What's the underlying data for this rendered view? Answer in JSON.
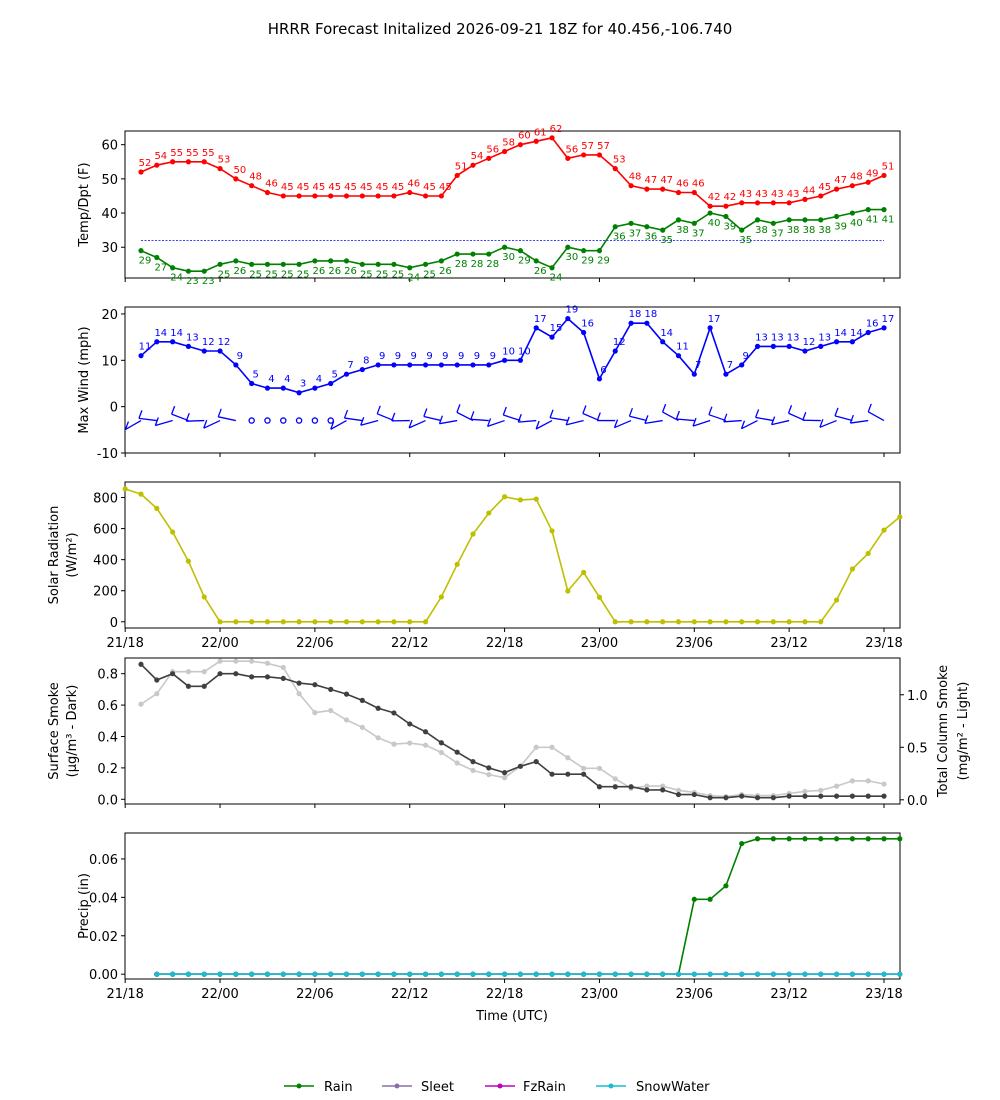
{
  "title": "HRRR Forecast Initalized 2026-09-21 18Z for 40.456,-106.740",
  "colors": {
    "temp": "#ff0000",
    "dewpoint": "#008000",
    "wind": "#0000ff",
    "solar": "#bfbf00",
    "smoke_dark": "#404040",
    "smoke_light": "#c8c8c8",
    "rain": "#008000",
    "sleet": "#8c6fa8",
    "fzrain": "#bf00bf",
    "snowwater": "#17becf",
    "freezing_line": "#0000ff"
  },
  "chart_data": [
    {
      "type": "line",
      "ylabel": "Temp/Dpt (F)",
      "ylim": [
        21,
        64
      ],
      "yticks": [
        30,
        40,
        50,
        60
      ],
      "freezing_line": 32,
      "x_start": 1,
      "series": [
        {
          "key": "temp",
          "values": [
            52,
            54,
            55,
            55,
            55,
            53,
            50,
            48,
            46,
            45,
            45,
            45,
            45,
            45,
            45,
            45,
            45,
            46,
            45,
            45,
            51,
            54,
            56,
            58,
            60,
            61,
            62,
            56,
            57,
            57,
            53,
            48,
            47,
            47,
            46,
            46,
            42,
            42,
            43,
            43,
            43,
            43,
            44,
            45,
            47,
            48,
            49,
            51
          ]
        },
        {
          "key": "dewpoint",
          "values": [
            29,
            27,
            24,
            23,
            23,
            25,
            26,
            25,
            25,
            25,
            25,
            26,
            26,
            26,
            25,
            25,
            25,
            24,
            25,
            26,
            28,
            28,
            28,
            30,
            29,
            26,
            24,
            30,
            29,
            29,
            36,
            37,
            36,
            35,
            38,
            37,
            40,
            39,
            35,
            38,
            37,
            38,
            38,
            38,
            39,
            40,
            41,
            41
          ]
        }
      ]
    },
    {
      "type": "line",
      "ylabel": "Max Wind (mph)",
      "ylim": [
        -10,
        21.5
      ],
      "yticks": [
        -10,
        0,
        10,
        20
      ],
      "x_start": 1,
      "series": [
        {
          "key": "wind",
          "values": [
            11,
            14,
            14,
            13,
            12,
            12,
            9,
            5,
            4,
            4,
            3,
            4,
            5,
            7,
            8,
            9,
            9,
            9,
            9,
            9,
            9,
            9,
            9,
            10,
            10,
            17,
            15,
            19,
            16,
            6,
            12,
            18,
            18,
            14,
            11,
            7,
            17,
            7,
            9,
            13,
            13,
            13,
            12,
            13,
            14,
            14,
            16,
            17
          ]
        }
      ]
    },
    {
      "type": "line",
      "ylabel": "Solar Radiation",
      "ylabel2": "(W/m²)",
      "ylim": [
        -40,
        900
      ],
      "yticks": [
        0,
        200,
        400,
        600,
        800
      ],
      "x_start": 0,
      "series": [
        {
          "key": "solar",
          "values": [
            855,
            822,
            730,
            578,
            390,
            160,
            0,
            0,
            0,
            0,
            0,
            0,
            0,
            0,
            0,
            0,
            0,
            0,
            0,
            0,
            160,
            370,
            565,
            700,
            805,
            785,
            790,
            585,
            198,
            318,
            158,
            0,
            0,
            0,
            0,
            0,
            0,
            0,
            0,
            0,
            0,
            0,
            0,
            0,
            0,
            140,
            340,
            440,
            590,
            675
          ]
        }
      ]
    },
    {
      "type": "line",
      "ylabel": "Surface Smoke",
      "ylabel2": "(μg/m³ - Dark)",
      "ylabel_right": "Total Column Smoke",
      "ylabel_right2": "(mg/m² - Light)",
      "ylim": [
        -0.03,
        0.9
      ],
      "yticks": [
        0.0,
        0.2,
        0.4,
        0.6,
        0.8
      ],
      "ylim_right": [
        -0.04,
        1.35
      ],
      "yticks_right": [
        0.0,
        0.5,
        1.0
      ],
      "x_start": 1,
      "series": [
        {
          "key": "smoke_light",
          "axis": "right",
          "values": [
            0.91,
            1.01,
            1.22,
            1.22,
            1.22,
            1.32,
            1.32,
            1.32,
            1.3,
            1.26,
            1.01,
            0.83,
            0.85,
            0.76,
            0.69,
            0.59,
            0.53,
            0.54,
            0.52,
            0.45,
            0.35,
            0.28,
            0.24,
            0.21,
            0.32,
            0.5,
            0.5,
            0.4,
            0.3,
            0.3,
            0.2,
            0.11,
            0.13,
            0.13,
            0.09,
            0.07,
            0.04,
            0.03,
            0.05,
            0.04,
            0.04,
            0.06,
            0.08,
            0.09,
            0.13,
            0.18,
            0.18,
            0.15
          ]
        },
        {
          "key": "smoke_dark",
          "axis": "left",
          "values": [
            0.86,
            0.76,
            0.8,
            0.72,
            0.72,
            0.8,
            0.8,
            0.78,
            0.78,
            0.77,
            0.74,
            0.73,
            0.7,
            0.67,
            0.63,
            0.58,
            0.55,
            0.48,
            0.43,
            0.36,
            0.3,
            0.24,
            0.2,
            0.17,
            0.21,
            0.24,
            0.16,
            0.16,
            0.16,
            0.08,
            0.08,
            0.08,
            0.06,
            0.06,
            0.03,
            0.03,
            0.01,
            0.01,
            0.02,
            0.01,
            0.01,
            0.02,
            0.02,
            0.02,
            0.02,
            0.02,
            0.02,
            0.02
          ]
        }
      ]
    },
    {
      "type": "line",
      "ylabel": "Precip (in)",
      "xlabel": "Time (UTC)",
      "ylim": [
        -0.0025,
        0.0735
      ],
      "yticks": [
        0.0,
        0.02,
        0.04,
        0.06
      ],
      "x_start": 2,
      "series": [
        {
          "key": "rain",
          "name": "Rain",
          "values": [
            0,
            0,
            0,
            0,
            0,
            0,
            0,
            0,
            0,
            0,
            0,
            0,
            0,
            0,
            0,
            0,
            0,
            0,
            0,
            0,
            0,
            0,
            0,
            0,
            0,
            0,
            0,
            0,
            0,
            0,
            0,
            0,
            0,
            0,
            0.039,
            0.039,
            0.046,
            0.068,
            0.0705,
            0.0705,
            0.0705,
            0.0705,
            0.0705,
            0.0705,
            0.0705,
            0.0705,
            0.0705,
            0.0705
          ]
        },
        {
          "key": "sleet",
          "name": "Sleet",
          "values": [
            0,
            0,
            0,
            0,
            0,
            0,
            0,
            0,
            0,
            0,
            0,
            0,
            0,
            0,
            0,
            0,
            0,
            0,
            0,
            0,
            0,
            0,
            0,
            0,
            0,
            0,
            0,
            0,
            0,
            0,
            0,
            0,
            0,
            0,
            0,
            0,
            0,
            0,
            0,
            0,
            0,
            0,
            0,
            0,
            0,
            0,
            0,
            0
          ]
        },
        {
          "key": "fzrain",
          "name": "FzRain",
          "values": [
            0,
            0,
            0,
            0,
            0,
            0,
            0,
            0,
            0,
            0,
            0,
            0,
            0,
            0,
            0,
            0,
            0,
            0,
            0,
            0,
            0,
            0,
            0,
            0,
            0,
            0,
            0,
            0,
            0,
            0,
            0,
            0,
            0,
            0,
            0,
            0,
            0,
            0,
            0,
            0,
            0,
            0,
            0,
            0,
            0,
            0,
            0,
            0
          ]
        },
        {
          "key": "snowwater",
          "name": "SnowWater",
          "values": [
            0,
            0,
            0,
            0,
            0,
            0,
            0,
            0,
            0,
            0,
            0,
            0,
            0,
            0,
            0,
            0,
            0,
            0,
            0,
            0,
            0,
            0,
            0,
            0,
            0,
            0,
            0,
            0,
            0,
            0,
            0,
            0,
            0,
            0,
            0,
            0,
            0,
            0,
            0,
            0,
            0,
            0,
            0,
            0,
            0,
            0,
            0,
            0
          ]
        }
      ]
    }
  ],
  "x_axis": {
    "hours": 49,
    "tick_hours": [
      0,
      6,
      12,
      18,
      24,
      30,
      36,
      42,
      48
    ],
    "tick_labels": [
      "21/18",
      "22/00",
      "22/06",
      "22/12",
      "22/18",
      "23/00",
      "23/06",
      "23/12",
      "23/18"
    ]
  },
  "legend": [
    {
      "key": "rain",
      "label": "Rain"
    },
    {
      "key": "sleet",
      "label": "Sleet"
    },
    {
      "key": "fzrain",
      "label": "FzRain"
    },
    {
      "key": "snowwater",
      "label": "SnowWater"
    }
  ]
}
